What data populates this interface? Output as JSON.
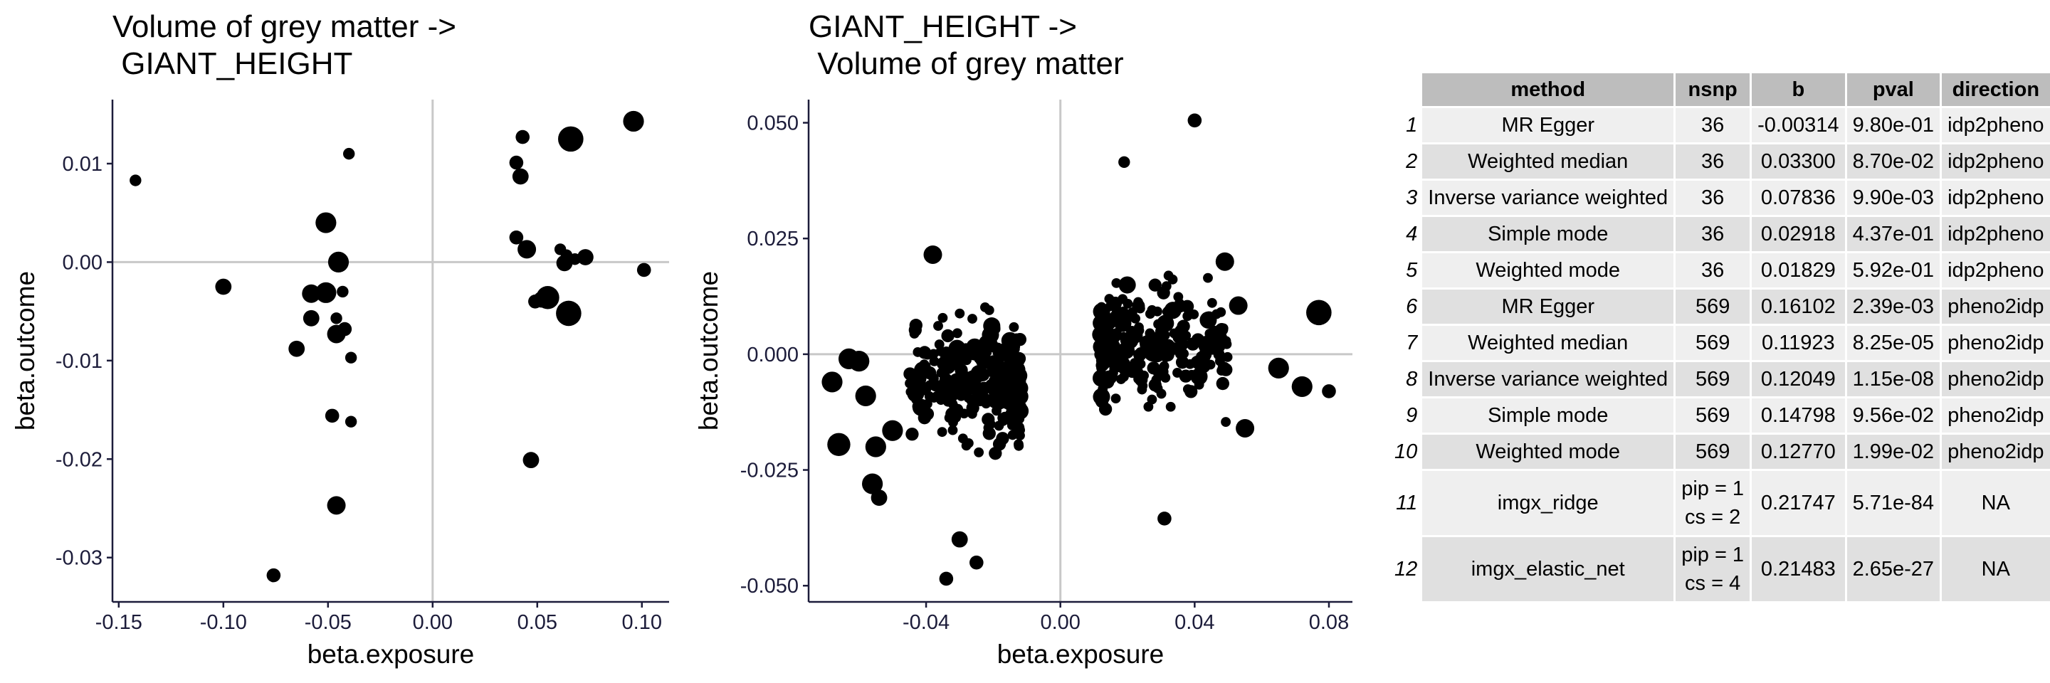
{
  "chart_data": [
    {
      "type": "scatter",
      "title": "Volume of grey matter ->\n GIANT_HEIGHT",
      "xlabel": "beta.exposure",
      "ylabel": "beta.outcome",
      "xlim": [
        -0.153,
        0.113
      ],
      "ylim": [
        -0.0345,
        0.0165
      ],
      "xticks": [
        -0.15,
        -0.1,
        -0.05,
        0.0,
        0.05,
        0.1
      ],
      "xtick_labels": [
        "-0.15",
        "-0.10",
        "-0.05",
        "0.00",
        "0.05",
        "0.10"
      ],
      "yticks": [
        -0.03,
        -0.02,
        -0.01,
        0.0,
        0.01
      ],
      "ytick_labels": [
        "-0.03",
        "-0.02",
        "-0.01",
        "0.00",
        "0.01"
      ],
      "reference_lines": {
        "x": 0,
        "y": 0
      },
      "points": [
        {
          "x": -0.142,
          "y": 0.0083,
          "s": 1
        },
        {
          "x": -0.1,
          "y": -0.0025,
          "s": 2
        },
        {
          "x": -0.076,
          "y": -0.0318,
          "s": 1.5
        },
        {
          "x": -0.065,
          "y": -0.0088,
          "s": 2
        },
        {
          "x": -0.058,
          "y": -0.0032,
          "s": 2.5
        },
        {
          "x": -0.058,
          "y": -0.0057,
          "s": 2
        },
        {
          "x": -0.051,
          "y": -0.0031,
          "s": 3
        },
        {
          "x": -0.051,
          "y": 0.004,
          "s": 3
        },
        {
          "x": -0.048,
          "y": -0.0156,
          "s": 1.5
        },
        {
          "x": -0.046,
          "y": -0.0073,
          "s": 2.5
        },
        {
          "x": -0.046,
          "y": -0.0247,
          "s": 2.5
        },
        {
          "x": -0.046,
          "y": -0.0057,
          "s": 1
        },
        {
          "x": -0.045,
          "y": 0.0,
          "s": 3
        },
        {
          "x": -0.043,
          "y": -0.003,
          "s": 1
        },
        {
          "x": -0.042,
          "y": -0.0068,
          "s": 1.5
        },
        {
          "x": -0.04,
          "y": 0.011,
          "s": 1
        },
        {
          "x": -0.039,
          "y": -0.0162,
          "s": 1
        },
        {
          "x": -0.039,
          "y": -0.0097,
          "s": 1
        },
        {
          "x": 0.04,
          "y": 0.0101,
          "s": 1.5
        },
        {
          "x": 0.04,
          "y": 0.0025,
          "s": 1.5
        },
        {
          "x": 0.042,
          "y": 0.0087,
          "s": 2
        },
        {
          "x": 0.043,
          "y": 0.0127,
          "s": 1.5
        },
        {
          "x": 0.045,
          "y": 0.0013,
          "s": 2.5
        },
        {
          "x": 0.047,
          "y": -0.0201,
          "s": 2
        },
        {
          "x": 0.049,
          "y": -0.004,
          "s": 1.5
        },
        {
          "x": 0.052,
          "y": -0.0038,
          "s": 2
        },
        {
          "x": 0.055,
          "y": -0.0036,
          "s": 3.5
        },
        {
          "x": 0.061,
          "y": 0.0013,
          "s": 1
        },
        {
          "x": 0.063,
          "y": -0.0001,
          "s": 2
        },
        {
          "x": 0.064,
          "y": 0.0007,
          "s": 1
        },
        {
          "x": 0.065,
          "y": -0.0052,
          "s": 4
        },
        {
          "x": 0.066,
          "y": 0.0125,
          "s": 4
        },
        {
          "x": 0.068,
          "y": 0.0003,
          "s": 1
        },
        {
          "x": 0.073,
          "y": 0.0005,
          "s": 2
        },
        {
          "x": 0.096,
          "y": 0.0143,
          "s": 3
        },
        {
          "x": 0.101,
          "y": -0.0008,
          "s": 1.5
        }
      ]
    },
    {
      "type": "scatter",
      "title": "GIANT_HEIGHT ->\n Volume of grey matter",
      "xlabel": "beta.exposure",
      "ylabel": "beta.outcome",
      "xlim": [
        -0.075,
        0.087
      ],
      "ylim": [
        -0.0535,
        0.055
      ],
      "xticks": [
        -0.04,
        0.0,
        0.04,
        0.08
      ],
      "xtick_labels": [
        "-0.04",
        "0.00",
        "0.04",
        "0.08"
      ],
      "yticks": [
        -0.05,
        -0.025,
        0.0,
        0.025,
        0.05
      ],
      "ytick_labels": [
        "-0.050",
        "-0.025",
        "0.000",
        "0.025",
        "0.050"
      ],
      "reference_lines": {
        "x": 0,
        "y": 0
      },
      "n_points": 569,
      "point_cloud_seed": 7,
      "points": [
        {
          "x": 0.04,
          "y": 0.0505,
          "s": 1.5
        },
        {
          "x": 0.019,
          "y": 0.0415,
          "s": 1
        },
        {
          "x": 0.077,
          "y": 0.009,
          "s": 4
        },
        {
          "x": 0.065,
          "y": -0.003,
          "s": 3
        },
        {
          "x": 0.072,
          "y": -0.007,
          "s": 3
        },
        {
          "x": 0.08,
          "y": -0.008,
          "s": 1.5
        },
        {
          "x": 0.055,
          "y": -0.016,
          "s": 2.5
        },
        {
          "x": 0.053,
          "y": 0.0105,
          "s": 2.5
        },
        {
          "x": 0.049,
          "y": 0.02,
          "s": 2.5
        },
        {
          "x": 0.031,
          "y": -0.0355,
          "s": 1.5
        },
        {
          "x": -0.066,
          "y": -0.0195,
          "s": 3.5
        },
        {
          "x": -0.068,
          "y": -0.006,
          "s": 3
        },
        {
          "x": -0.063,
          "y": -0.001,
          "s": 3
        },
        {
          "x": -0.06,
          "y": -0.0015,
          "s": 3
        },
        {
          "x": -0.056,
          "y": -0.028,
          "s": 3
        },
        {
          "x": -0.055,
          "y": -0.02,
          "s": 3
        },
        {
          "x": -0.054,
          "y": -0.031,
          "s": 2
        },
        {
          "x": -0.058,
          "y": -0.009,
          "s": 3
        },
        {
          "x": -0.05,
          "y": -0.0165,
          "s": 3
        },
        {
          "x": -0.034,
          "y": -0.0485,
          "s": 1.5
        },
        {
          "x": -0.03,
          "y": -0.04,
          "s": 2
        },
        {
          "x": -0.025,
          "y": -0.045,
          "s": 1.5
        },
        {
          "x": -0.038,
          "y": 0.0215,
          "s": 2.5
        }
      ]
    }
  ],
  "table": {
    "headers": [
      "method",
      "nsnp",
      "b",
      "pval",
      "direction"
    ],
    "rows": [
      {
        "n": "1",
        "method": "MR Egger",
        "nsnp": "36",
        "b": "-0.00314",
        "pval": "9.80e-01",
        "direction": "idp2pheno"
      },
      {
        "n": "2",
        "method": "Weighted median",
        "nsnp": "36",
        "b": "0.03300",
        "pval": "8.70e-02",
        "direction": "idp2pheno"
      },
      {
        "n": "3",
        "method": "Inverse variance weighted",
        "nsnp": "36",
        "b": "0.07836",
        "pval": "9.90e-03",
        "direction": "idp2pheno"
      },
      {
        "n": "4",
        "method": "Simple mode",
        "nsnp": "36",
        "b": "0.02918",
        "pval": "4.37e-01",
        "direction": "idp2pheno"
      },
      {
        "n": "5",
        "method": "Weighted mode",
        "nsnp": "36",
        "b": "0.01829",
        "pval": "5.92e-01",
        "direction": "idp2pheno"
      },
      {
        "n": "6",
        "method": "MR Egger",
        "nsnp": "569",
        "b": "0.16102",
        "pval": "2.39e-03",
        "direction": "pheno2idp"
      },
      {
        "n": "7",
        "method": "Weighted median",
        "nsnp": "569",
        "b": "0.11923",
        "pval": "8.25e-05",
        "direction": "pheno2idp"
      },
      {
        "n": "8",
        "method": "Inverse variance weighted",
        "nsnp": "569",
        "b": "0.12049",
        "pval": "1.15e-08",
        "direction": "pheno2idp"
      },
      {
        "n": "9",
        "method": "Simple mode",
        "nsnp": "569",
        "b": "0.14798",
        "pval": "9.56e-02",
        "direction": "pheno2idp"
      },
      {
        "n": "10",
        "method": "Weighted mode",
        "nsnp": "569",
        "b": "0.12770",
        "pval": "1.99e-02",
        "direction": "pheno2idp"
      },
      {
        "n": "11",
        "method": "imgx_ridge",
        "nsnp": "pip = 1\ncs = 2",
        "b": "0.21747",
        "pval": "5.71e-84",
        "direction": "NA"
      },
      {
        "n": "12",
        "method": "imgx_elastic_net",
        "nsnp": "pip = 1\ncs = 4",
        "b": "0.21483",
        "pval": "2.65e-27",
        "direction": "NA"
      }
    ]
  }
}
